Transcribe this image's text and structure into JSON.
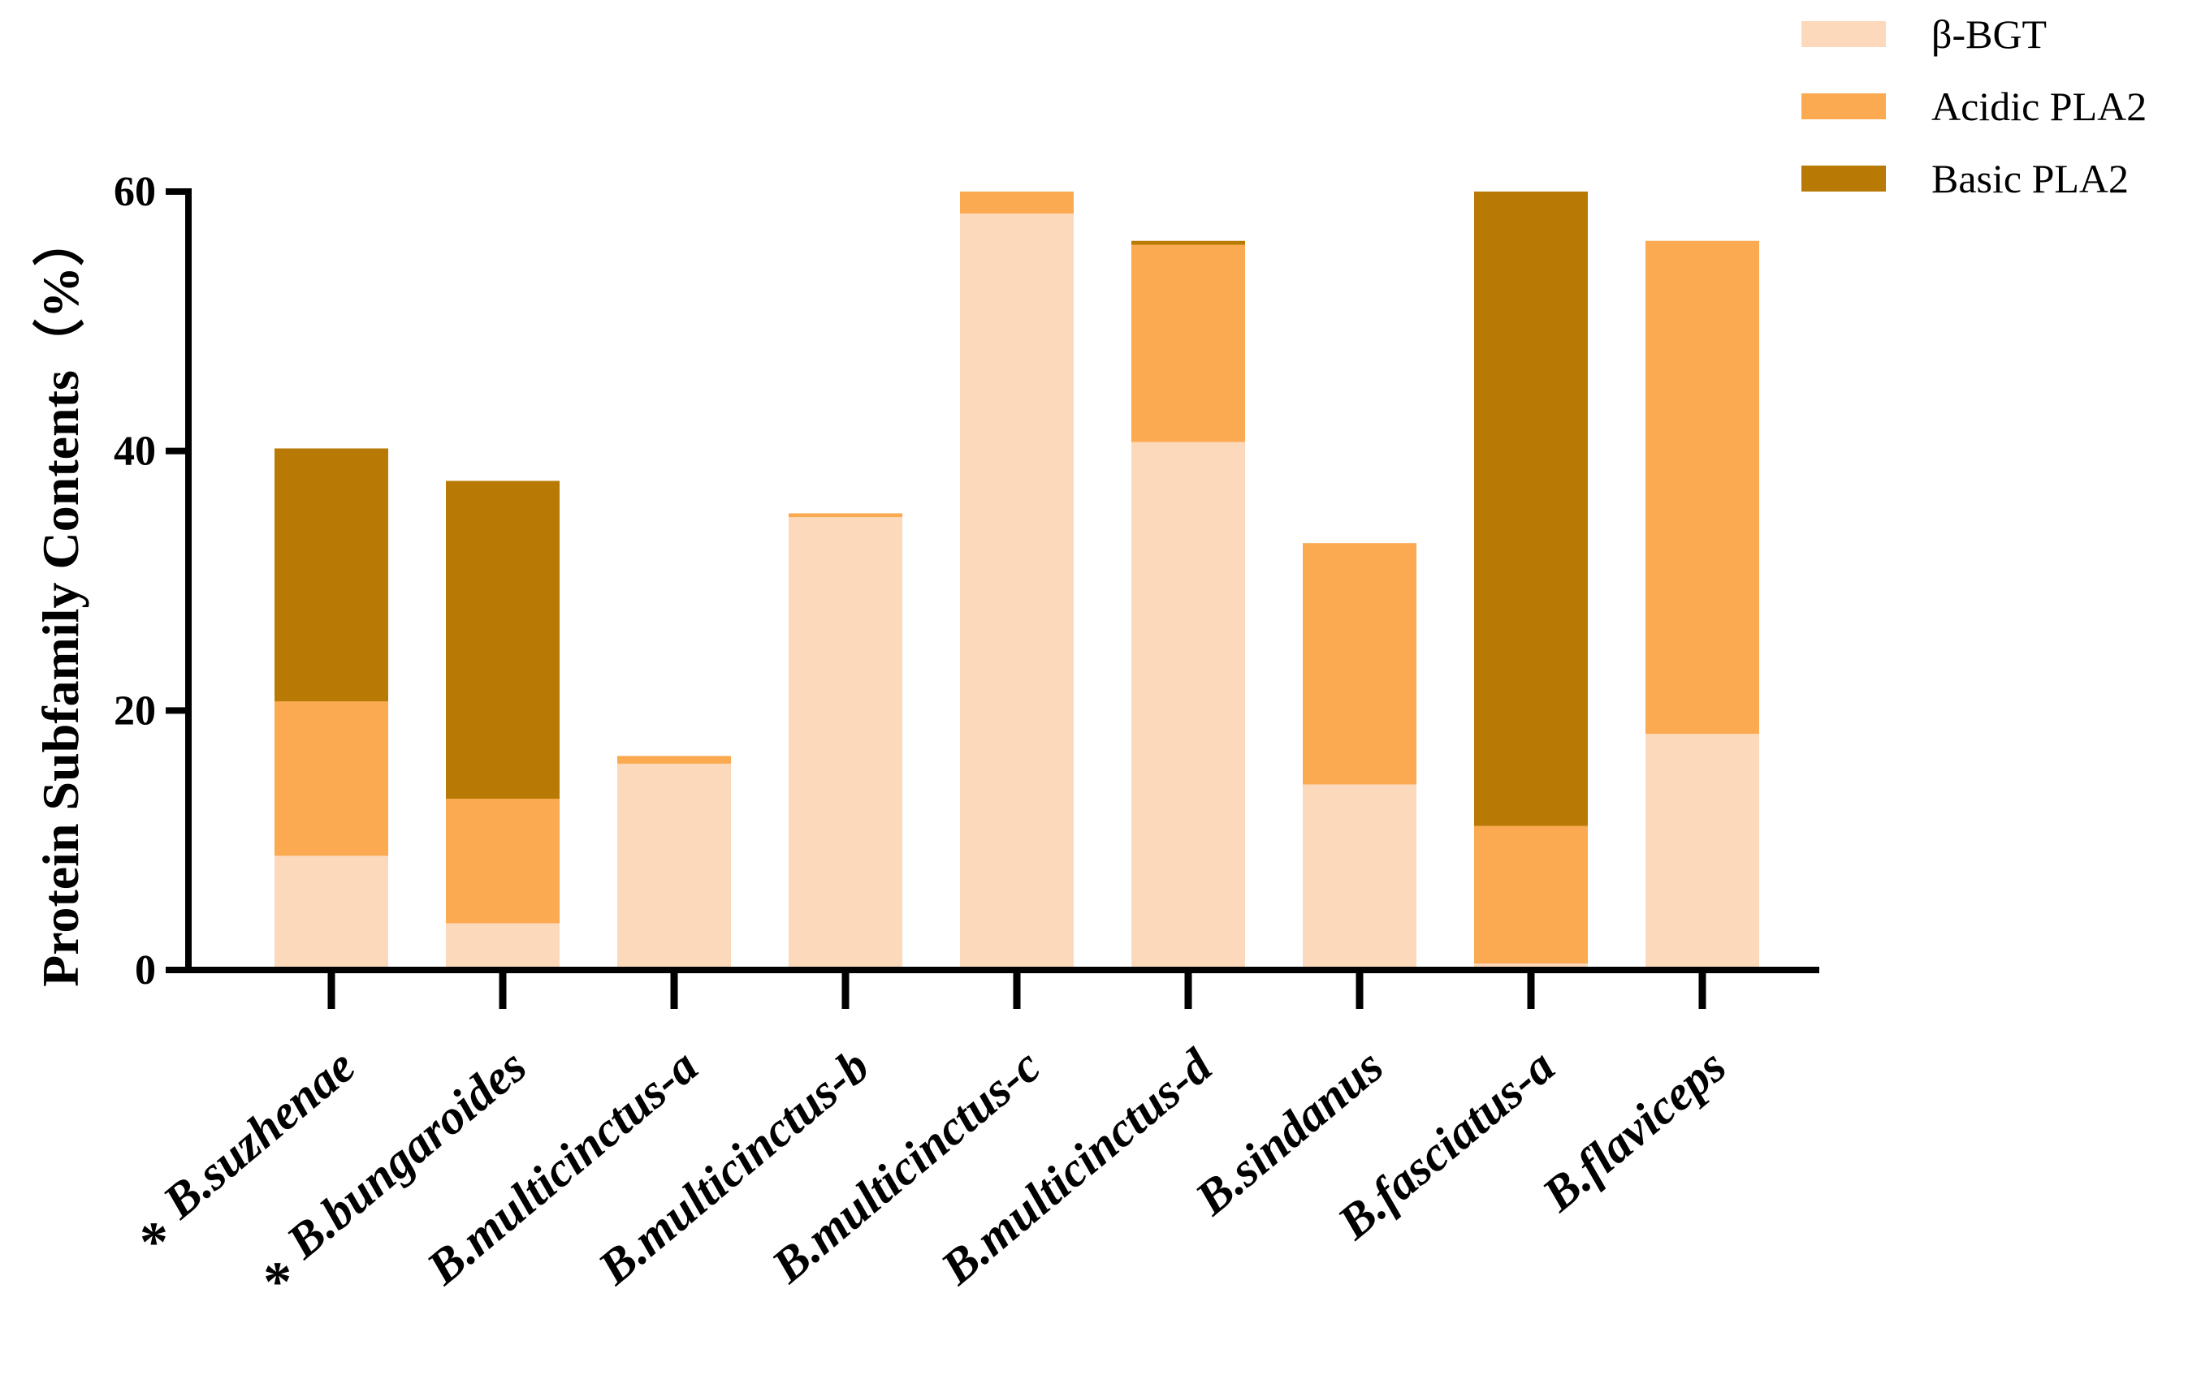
{
  "chart_data": {
    "type": "bar",
    "stacked": true,
    "title": "",
    "xlabel": "",
    "ylabel": "Protein Subfamily Contents（%）",
    "ylim": [
      0,
      60
    ],
    "yticks": [
      0,
      20,
      40,
      60
    ],
    "categories": [
      "B.suzhenae",
      "B.bungaroides",
      "B.multicinctus-a",
      "B.multicinctus-b",
      "B.multicinctus-c",
      "B.multicinctus-d",
      "B.sindanus",
      "B.fasciatus-a",
      "B.flaviceps"
    ],
    "marked_categories": [
      "B.suzhenae",
      "B.bungaroides"
    ],
    "marker_symbol": "*",
    "series": [
      {
        "name": "β-BGT",
        "color": "#FDD9BC",
        "values": [
          8.8,
          3.6,
          15.9,
          34.9,
          58.3,
          40.7,
          14.3,
          0.5,
          18.2
        ]
      },
      {
        "name": "Acidic PLA2",
        "color": "#FBAA52",
        "values": [
          11.9,
          9.6,
          0.6,
          0.3,
          1.7,
          15.2,
          18.6,
          10.6,
          38.0
        ]
      },
      {
        "name": "Basic PLA2",
        "color": "#B87A05",
        "values": [
          19.5,
          24.5,
          0,
          0,
          0,
          0.3,
          0,
          48.9,
          0
        ]
      }
    ],
    "legend_position": "top-right",
    "grid": false
  }
}
